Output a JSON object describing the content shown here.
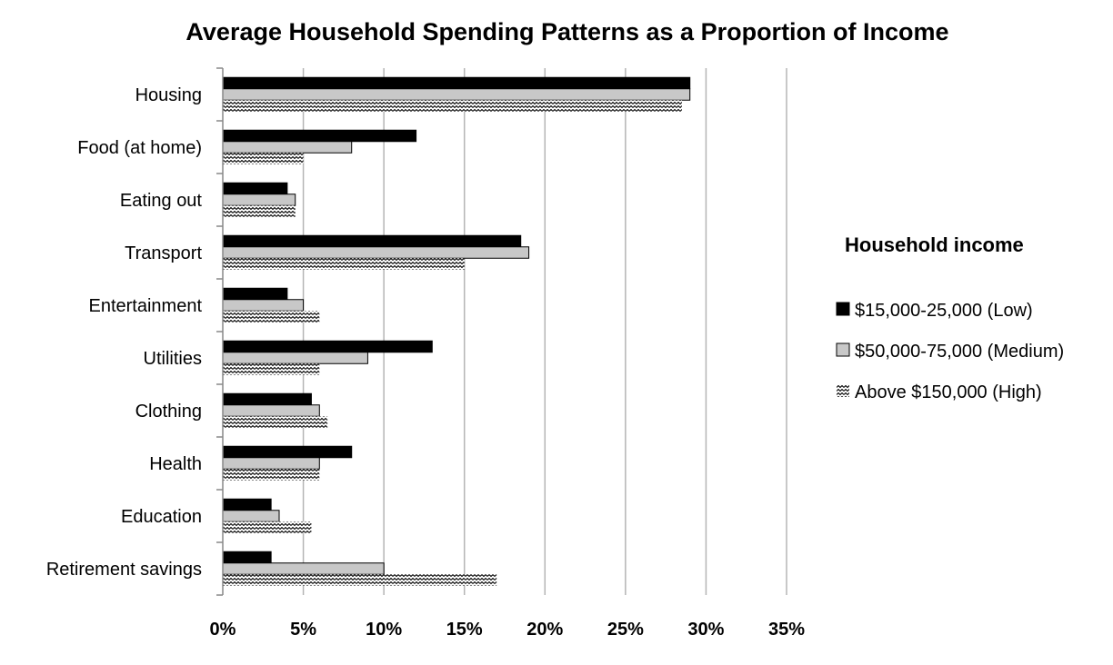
{
  "chart_data": {
    "type": "bar",
    "orientation": "horizontal",
    "title": "Average Household Spending Patterns as a Proportion of Income",
    "categories": [
      "Housing",
      "Food (at home)",
      "Eating out",
      "Transport",
      "Entertainment",
      "Utilities",
      "Clothing",
      "Health",
      "Education",
      "Retirement savings"
    ],
    "series": [
      {
        "name": "$15,000-25,000 (Low)",
        "fill": "solid-black",
        "values": [
          29,
          12,
          4,
          18.5,
          4,
          13,
          5.5,
          8,
          3,
          3
        ]
      },
      {
        "name": "$50,000-75,000 (Medium)",
        "fill": "light-gray",
        "values": [
          29,
          8,
          4.5,
          19,
          5,
          9,
          6,
          6,
          3.5,
          10
        ]
      },
      {
        "name": "Above $150,000 (High)",
        "fill": "zigzag-pattern",
        "values": [
          28.5,
          5,
          4.5,
          15,
          6,
          6,
          6.5,
          6,
          5.5,
          17
        ]
      }
    ],
    "xlim": [
      0,
      35
    ],
    "xticks": [
      "0%",
      "5%",
      "10%",
      "15%",
      "20%",
      "25%",
      "30%",
      "35%"
    ],
    "xlabel": "",
    "ylabel": "",
    "grid": "vertical",
    "legend": {
      "title": "Household income",
      "placement": "right"
    },
    "colors": {
      "low": "#000000",
      "medium": "#c8c8c8",
      "grid": "#b5b5b5",
      "axis": "#888888"
    }
  }
}
